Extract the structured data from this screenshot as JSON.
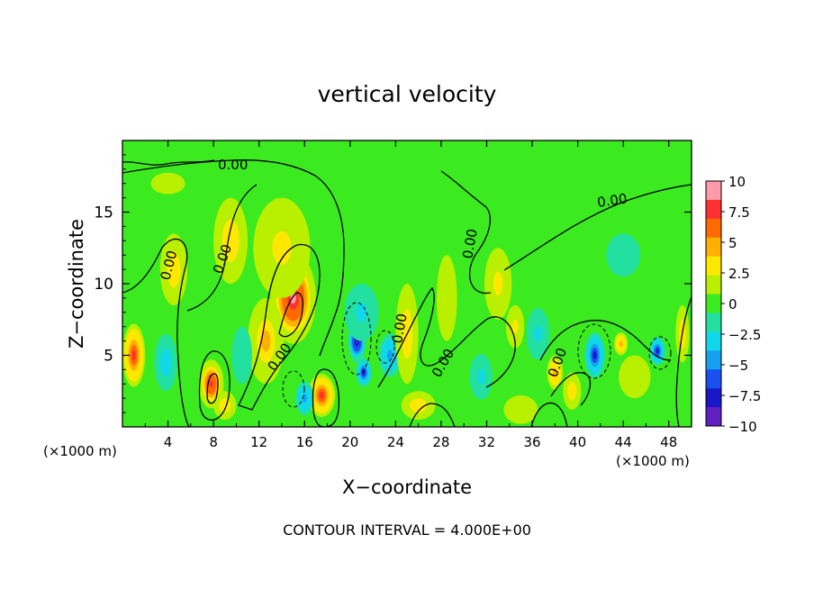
{
  "chart_data": {
    "type": "heatmap",
    "title": "vertical velocity",
    "xlabel": "X−coordinate",
    "ylabel": "Z−coordinate",
    "x_unit_left": "(×1000 m)",
    "x_unit_right": "(×1000 m)",
    "xlim": [
      0,
      50
    ],
    "ylim": [
      0,
      20
    ],
    "xticks": [
      4,
      8,
      12,
      16,
      20,
      24,
      28,
      32,
      36,
      40,
      44,
      48
    ],
    "xtick_labels": [
      "4",
      "8",
      "12",
      "16",
      "20",
      "24",
      "28",
      "32",
      "36",
      "40",
      "44",
      "48"
    ],
    "yticks": [
      5,
      10,
      15
    ],
    "ytick_labels": [
      "5",
      "10",
      "15"
    ],
    "colorbar": {
      "ticks": [
        10,
        7.5,
        5,
        2.5,
        0,
        -2.5,
        -5,
        -7.5,
        -10
      ],
      "labels": [
        "10",
        "7.5",
        "5",
        "2.5",
        "0",
        "−2.5",
        "−5",
        "−7.5",
        "−10"
      ],
      "colors": [
        "#ff9aa8",
        "#ff3030",
        "#ff6a00",
        "#ffb000",
        "#ffe800",
        "#b8f000",
        "#3cea20",
        "#22e0a0",
        "#10d8e8",
        "#18a0f0",
        "#1a50f0",
        "#1818c8",
        "#6020c0"
      ]
    },
    "contour_labels": [
      "0.00",
      "0.00",
      "0.00",
      "0.00",
      "0.00",
      "0.00",
      "0.00",
      "0.00",
      "0.00"
    ],
    "cells": [
      {
        "x": 1.0,
        "z": 5.0,
        "sx": 1.0,
        "sz": 2.2,
        "v": 7
      },
      {
        "x": 7.8,
        "z": 3.0,
        "sx": 1.1,
        "sz": 1.7,
        "v": 8
      },
      {
        "x": 15.0,
        "z": 9.0,
        "sx": 2.0,
        "sz": 3.2,
        "v": 9
      },
      {
        "x": 14.0,
        "z": 12.5,
        "sx": 2.5,
        "sz": 3.5,
        "v": 3
      },
      {
        "x": 12.6,
        "z": 6.0,
        "sx": 1.6,
        "sz": 3.0,
        "v": 4
      },
      {
        "x": 17.5,
        "z": 2.2,
        "sx": 1.2,
        "sz": 1.5,
        "v": 7
      },
      {
        "x": 16.0,
        "z": 2.0,
        "sx": 0.8,
        "sz": 1.2,
        "v": -5
      },
      {
        "x": 20.6,
        "z": 6.0,
        "sx": 0.8,
        "sz": 1.5,
        "v": -9
      },
      {
        "x": 21.2,
        "z": 3.8,
        "sx": 0.7,
        "sz": 1.0,
        "v": -7
      },
      {
        "x": 23.5,
        "z": 5.0,
        "sx": 1.0,
        "sz": 1.5,
        "v": -5
      },
      {
        "x": 21.0,
        "z": 8.0,
        "sx": 1.5,
        "sz": 2.0,
        "v": -3
      },
      {
        "x": 3.8,
        "z": 4.5,
        "sx": 1.0,
        "sz": 2.0,
        "v": -2.5
      },
      {
        "x": 10.5,
        "z": 5.0,
        "sx": 0.9,
        "sz": 2.0,
        "v": -2
      },
      {
        "x": 4.5,
        "z": 11.0,
        "sx": 1.2,
        "sz": 2.5,
        "v": 2.5
      },
      {
        "x": 9.5,
        "z": 13.0,
        "sx": 1.5,
        "sz": 3.0,
        "v": 2.5
      },
      {
        "x": 25.0,
        "z": 6.5,
        "sx": 1.0,
        "sz": 3.5,
        "v": 2.5
      },
      {
        "x": 28.5,
        "z": 9.0,
        "sx": 0.9,
        "sz": 3.0,
        "v": 2
      },
      {
        "x": 33.0,
        "z": 10.0,
        "sx": 1.2,
        "sz": 2.5,
        "v": 3
      },
      {
        "x": 34.5,
        "z": 7.0,
        "sx": 0.8,
        "sz": 1.5,
        "v": 3
      },
      {
        "x": 31.5,
        "z": 3.5,
        "sx": 1.0,
        "sz": 1.6,
        "v": -3
      },
      {
        "x": 38.0,
        "z": 3.8,
        "sx": 0.7,
        "sz": 1.2,
        "v": 5
      },
      {
        "x": 39.5,
        "z": 2.5,
        "sx": 0.8,
        "sz": 1.3,
        "v": 2.5
      },
      {
        "x": 41.5,
        "z": 5.0,
        "sx": 0.9,
        "sz": 1.6,
        "v": -7
      },
      {
        "x": 43.8,
        "z": 5.8,
        "sx": 0.6,
        "sz": 0.8,
        "v": 5
      },
      {
        "x": 47.0,
        "z": 5.3,
        "sx": 0.7,
        "sz": 1.0,
        "v": -7
      },
      {
        "x": 49.2,
        "z": 6.5,
        "sx": 0.6,
        "sz": 2.0,
        "v": 2.5
      },
      {
        "x": 45.0,
        "z": 3.5,
        "sx": 1.4,
        "sz": 1.5,
        "v": 2
      },
      {
        "x": 36.5,
        "z": 6.5,
        "sx": 1.0,
        "sz": 1.8,
        "v": -3
      },
      {
        "x": 44.0,
        "z": 12.0,
        "sx": 3.0,
        "sz": 3.0,
        "v": -1
      },
      {
        "x": 4.0,
        "z": 17.0,
        "sx": 3.0,
        "sz": 1.5,
        "v": 0.8
      },
      {
        "x": 9.0,
        "z": 1.5,
        "sx": 1.0,
        "sz": 1.0,
        "v": 2.5
      },
      {
        "x": 26.0,
        "z": 1.5,
        "sx": 1.5,
        "sz": 1.0,
        "v": 2.5
      },
      {
        "x": 35.0,
        "z": 1.2,
        "sx": 1.5,
        "sz": 1.0,
        "v": 2
      }
    ],
    "annotation": "CONTOUR INTERVAL = 4.000E+00"
  }
}
